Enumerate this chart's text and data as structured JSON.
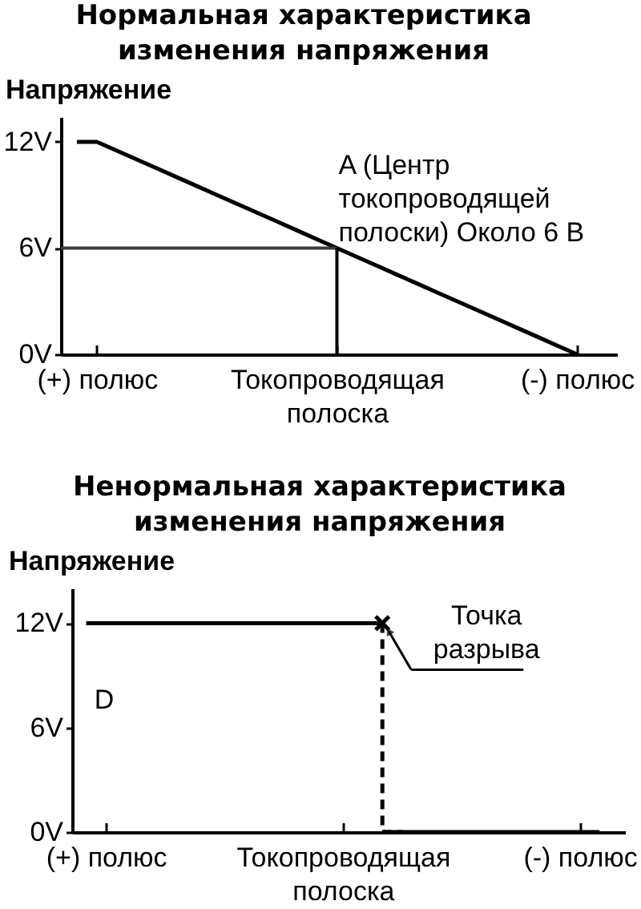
{
  "chart_data": [
    {
      "type": "line",
      "title": "Нормальная характеристика\nизменения напряжения",
      "ylabel": "Напряжение",
      "categories": [
        null,
        "(+) полюс",
        null,
        null,
        null,
        null,
        null,
        null,
        null,
        null,
        null,
        null,
        null,
        "Токопроводящая\nполоска",
        null,
        null,
        null,
        null,
        null,
        null,
        null,
        null,
        null,
        null,
        null,
        "(-) полюс",
        null
      ],
      "ylim": [
        0,
        13.4
      ],
      "yticks": [
        {
          "value": 0,
          "label": "0V"
        },
        {
          "value": 6,
          "label": "6V"
        },
        {
          "value": 12,
          "label": "12V"
        }
      ],
      "series": [
        {
          "color": "#000000",
          "values": [
            12,
            12,
            11.5,
            11,
            10.5,
            10,
            9.5,
            9,
            8.5,
            8,
            7.5,
            7,
            6.5,
            6,
            5.5,
            5,
            4.5,
            4,
            3.5,
            3,
            2.5,
            2,
            1.5,
            1,
            0.5,
            0,
            null
          ]
        }
      ],
      "annotations": [
        {
          "text": "A (Центр\nтокопроводящей\nполоски) Около 6 В",
          "x": "Токопроводящая\nполоска",
          "y": 6
        }
      ]
    },
    {
      "type": "line",
      "title": "Ненормальная характеристика\nизменения напряжения",
      "ylabel": "Напряжение",
      "categories": [
        null,
        "(+) полюс",
        null,
        null,
        null,
        null,
        null,
        null,
        null,
        null,
        null,
        null,
        null,
        "Токопроводящая\nполоска",
        null,
        null,
        null,
        null,
        null,
        null,
        null,
        null,
        null,
        null,
        null,
        "(-) полюс",
        null
      ],
      "ylim": [
        0,
        14
      ],
      "yticks": [
        {
          "value": 0,
          "label": "0V"
        },
        {
          "value": 6,
          "label": "6V"
        },
        {
          "value": 12,
          "label": "12V"
        }
      ],
      "series": [
        {
          "type": "step",
          "line_style": "dashed",
          "color": "#000000",
          "values": [
            null,
            null,
            null,
            null,
            null,
            null,
            null,
            null,
            null,
            null,
            null,
            null,
            null,
            null,
            null,
            12,
            0,
            null,
            null,
            null,
            null,
            null,
            null,
            null,
            null,
            null,
            null
          ]
        },
        {
          "color": "#000000",
          "values": [
            12,
            12,
            12,
            12,
            12,
            12,
            12,
            12,
            12,
            12,
            12,
            12,
            12,
            12,
            12,
            12,
            null,
            null,
            null,
            null,
            null,
            null,
            null,
            null,
            null,
            null,
            null
          ]
        },
        {
          "color": "#000000",
          "values": [
            null,
            null,
            null,
            null,
            null,
            null,
            null,
            null,
            null,
            null,
            null,
            null,
            null,
            null,
            null,
            0,
            0,
            0,
            0,
            0,
            0,
            0,
            0,
            0,
            0,
            0,
            0
          ]
        },
        {
          "type": "scatter",
          "name": "Точка\nразрыва",
          "marker": "cross",
          "color": "#000000",
          "values": [
            null,
            null,
            null,
            null,
            null,
            null,
            null,
            null,
            null,
            null,
            null,
            null,
            null,
            null,
            null,
            12,
            null,
            null,
            null,
            null,
            null,
            null,
            null,
            null,
            null,
            null,
            null
          ]
        }
      ],
      "annotations": [
        "D"
      ]
    }
  ]
}
